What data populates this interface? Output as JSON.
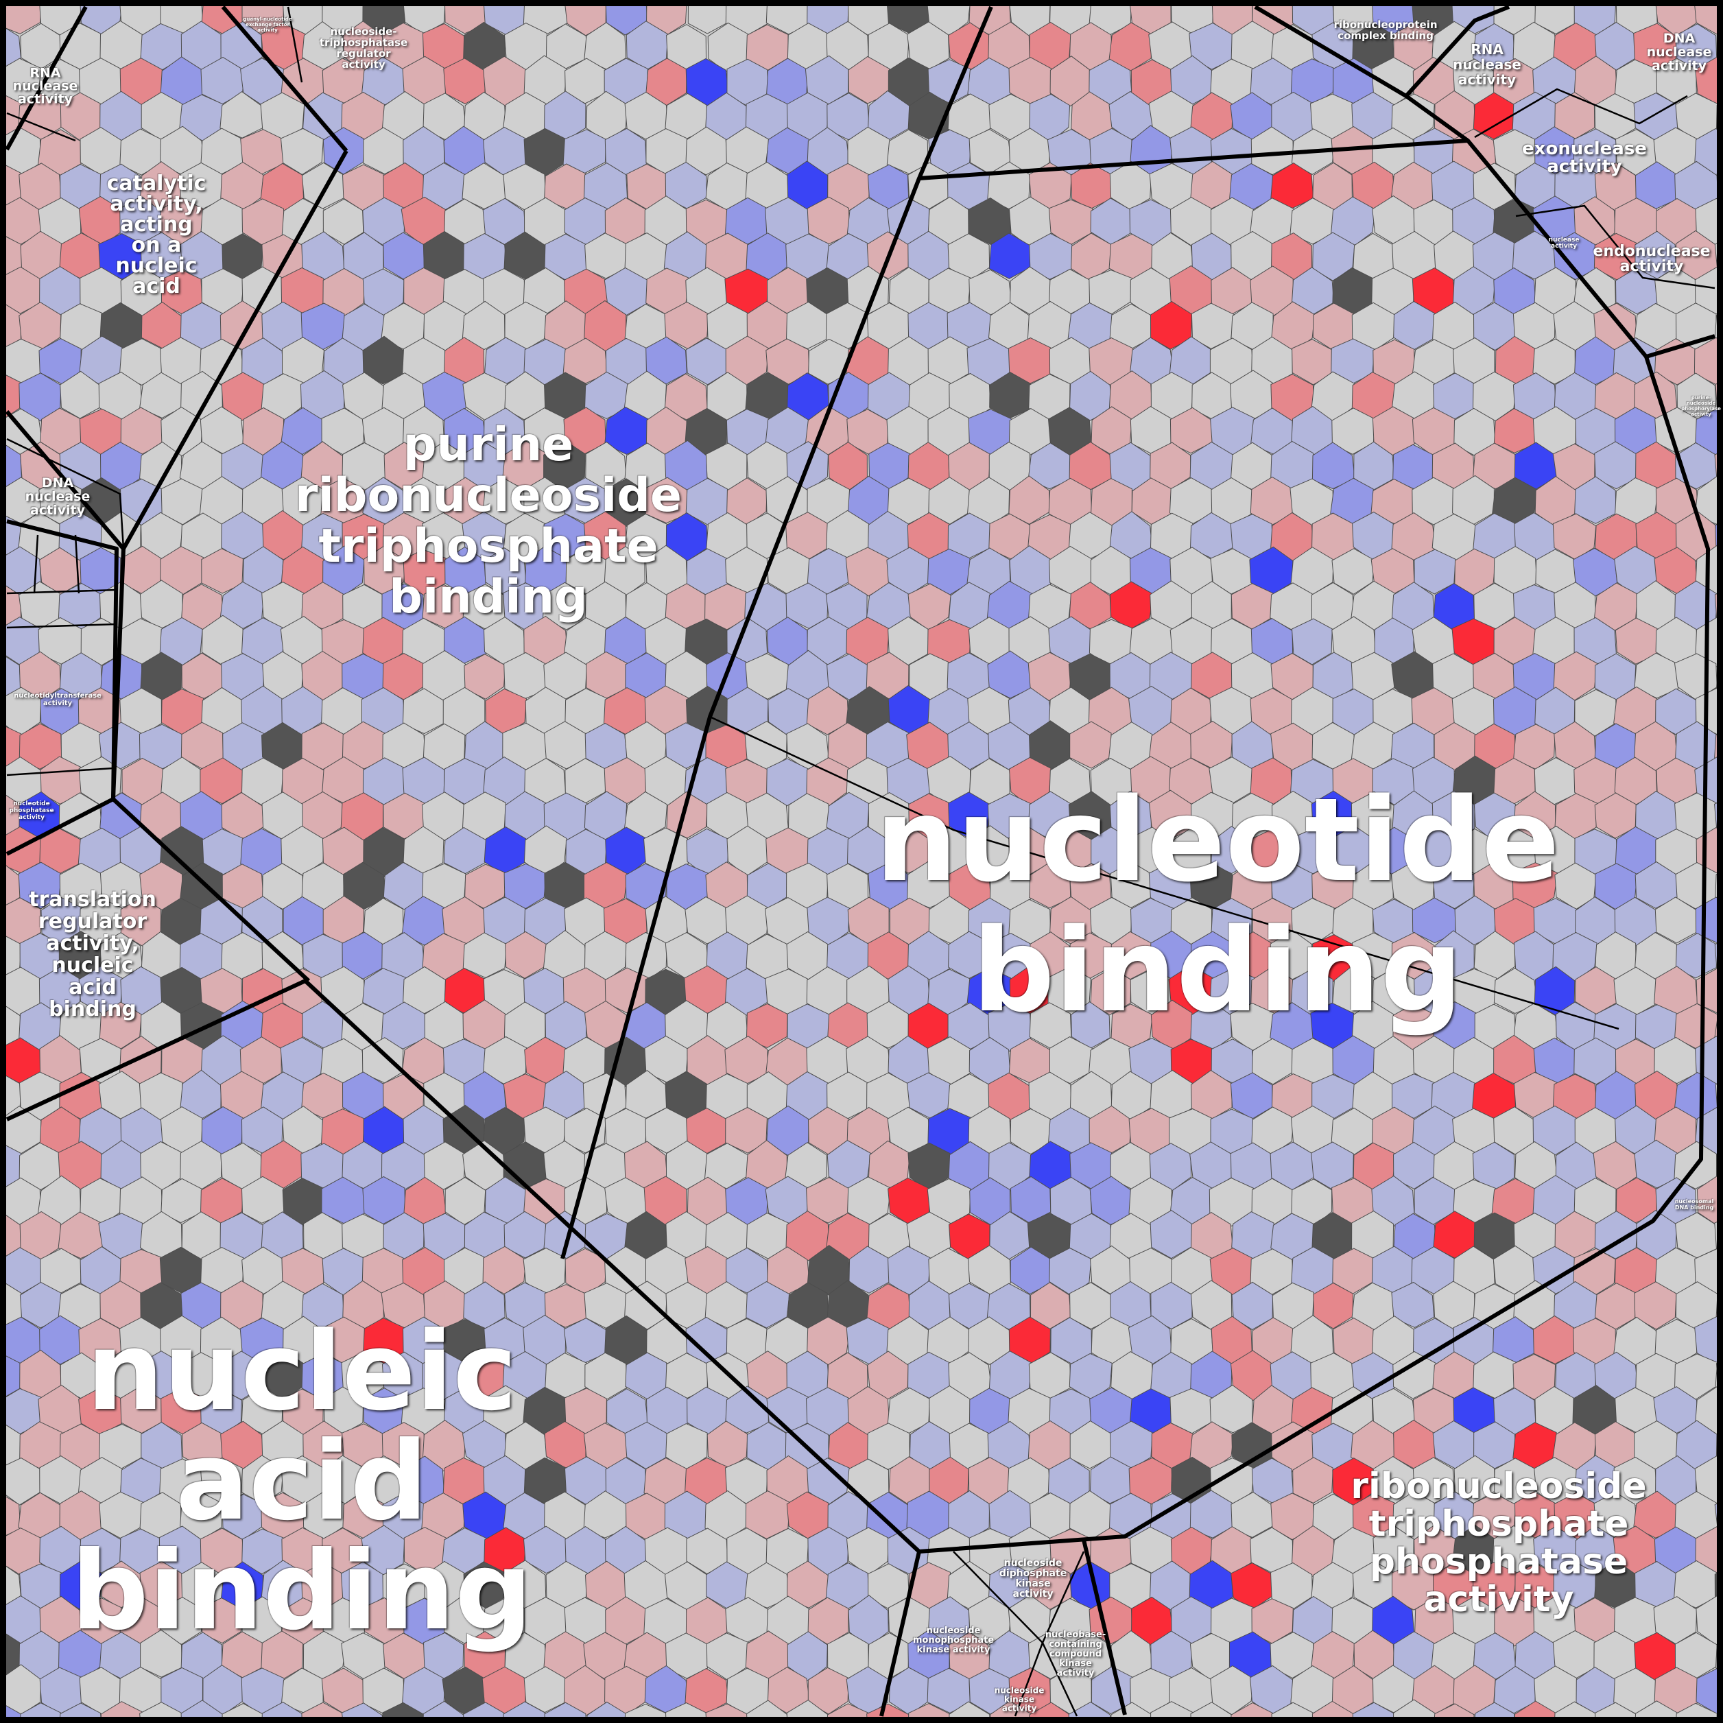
{
  "colors": {
    "background": "#cfcfcf",
    "cell_border": "#4d4d4d",
    "region_border": "#000000",
    "label": "#ffffff",
    "cell_palette": [
      "#d0d0d0",
      "#b2b6dc",
      "#9398e6",
      "#3a44f5",
      "#dbaeb1",
      "#e5878c",
      "#fb2a37",
      "#545454"
    ]
  },
  "regions": [
    {
      "id": "nucleic-acid-binding",
      "label": "nucleic\nacid\nbinding"
    },
    {
      "id": "nucleotide-binding",
      "label": "nucleotide\nbinding"
    },
    {
      "id": "purine-ribonucleoside-triphosphate-binding",
      "label": "purine\nribonucleoside\ntriphosphate\nbinding"
    },
    {
      "id": "ribonucleoside-triphosphate-phosphatase-activity",
      "label": "ribonucleoside\ntriphosphate\nphosphatase\nactivity"
    },
    {
      "id": "catalytic-activity-nucleic-acid",
      "label": "catalytic\nactivity,\nacting\non a\nnucleic\nacid"
    },
    {
      "id": "translation-regulator-activity",
      "label": "translation\nregulator\nactivity,\nnucleic\nacid\nbinding"
    },
    {
      "id": "exonuclease-activity",
      "label": "exonuclease\nactivity"
    },
    {
      "id": "endonuclease-activity",
      "label": "endonuclease\nactivity"
    },
    {
      "id": "rna-nuclease-activity-left",
      "label": "RNA\nnuclease\nactivity"
    },
    {
      "id": "rna-nuclease-activity-right",
      "label": "RNA\nnuclease\nactivity"
    },
    {
      "id": "dna-nuclease-activity-left",
      "label": "DNA\nnuclease\nactivity"
    },
    {
      "id": "dna-nuclease-activity-right",
      "label": "DNA\nnuclease\nactivity"
    },
    {
      "id": "nucleoside-triphosphatase-regulator-activity",
      "label": "nucleoside-\ntriphosphatase\nregulator\nactivity"
    },
    {
      "id": "ribonucleoprotein-complex-binding",
      "label": "ribonucleoprotein\ncomplex binding"
    },
    {
      "id": "nucleoside-diphosphate-kinase-activity",
      "label": "nucleoside\ndiphosphate\nkinase\nactivity"
    },
    {
      "id": "nucleoside-monophosphate-kinase-activity",
      "label": "nucleoside\nmonophosphate\nkinase activity"
    },
    {
      "id": "nucleobase-containing-compound-kinase-activity",
      "label": "nucleobase-\ncontaining\ncompound\nkinase\nactivity"
    },
    {
      "id": "nucleoside-kinase-activity",
      "label": "nucleoside\nkinase\nactivity"
    },
    {
      "id": "nucleotidyltransferase-activity",
      "label": "nucleotidyltransferase\nactivity"
    },
    {
      "id": "nucleotide-phosphatase-activity",
      "label": "nucleotide\nphosphatase\nactivity"
    },
    {
      "id": "guanyl-nucleotide-exchange-factor-activity",
      "label": "guanyl-nucleotide\nexchange factor\nactivity"
    },
    {
      "id": "nuclease-activity",
      "label": "nuclease\nactivity"
    },
    {
      "id": "purine-nucleoside-phosphorylase-activity",
      "label": "purine-\nnucleoside\nphosphorylase\nactivity"
    },
    {
      "id": "nucleosomal-dna-binding",
      "label": "nucleosomal\nDNA binding"
    }
  ]
}
